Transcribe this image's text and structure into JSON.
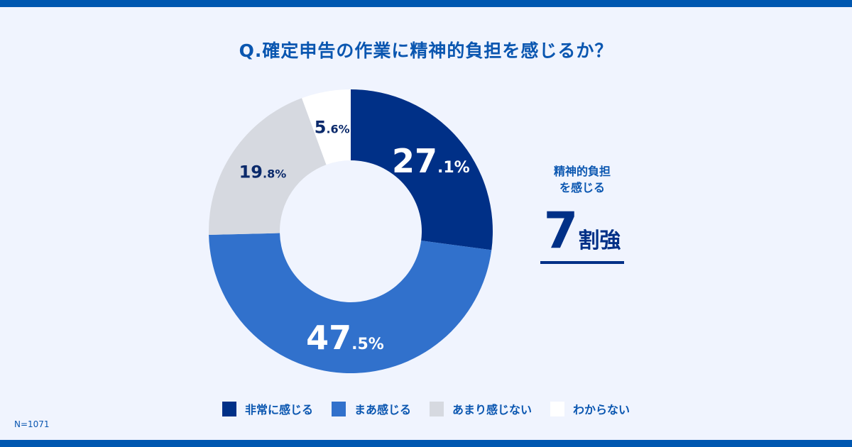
{
  "title": "Q.確定申告の作業に精神的負担を感じるか？",
  "side": {
    "line1": "精神的負担",
    "line2": "を感じる",
    "number": "7",
    "unit": "割強"
  },
  "note": "N=1071",
  "chart_data": {
    "type": "pie",
    "donut": true,
    "start": "top",
    "direction": "clockwise",
    "unit": "%",
    "categories": [
      "非常に感じる",
      "まあ感じる",
      "あまり感じない",
      "わからない"
    ],
    "values": [
      27.1,
      47.5,
      19.8,
      5.6
    ],
    "colors": [
      "#003087",
      "#3171CC",
      "#D6D9E0",
      "#FFFFFF"
    ],
    "label_colors": [
      "#FFFFFF",
      "#FFFFFF",
      "#0B2A6B",
      "#0B2A6B"
    ],
    "legend": "bottom"
  }
}
